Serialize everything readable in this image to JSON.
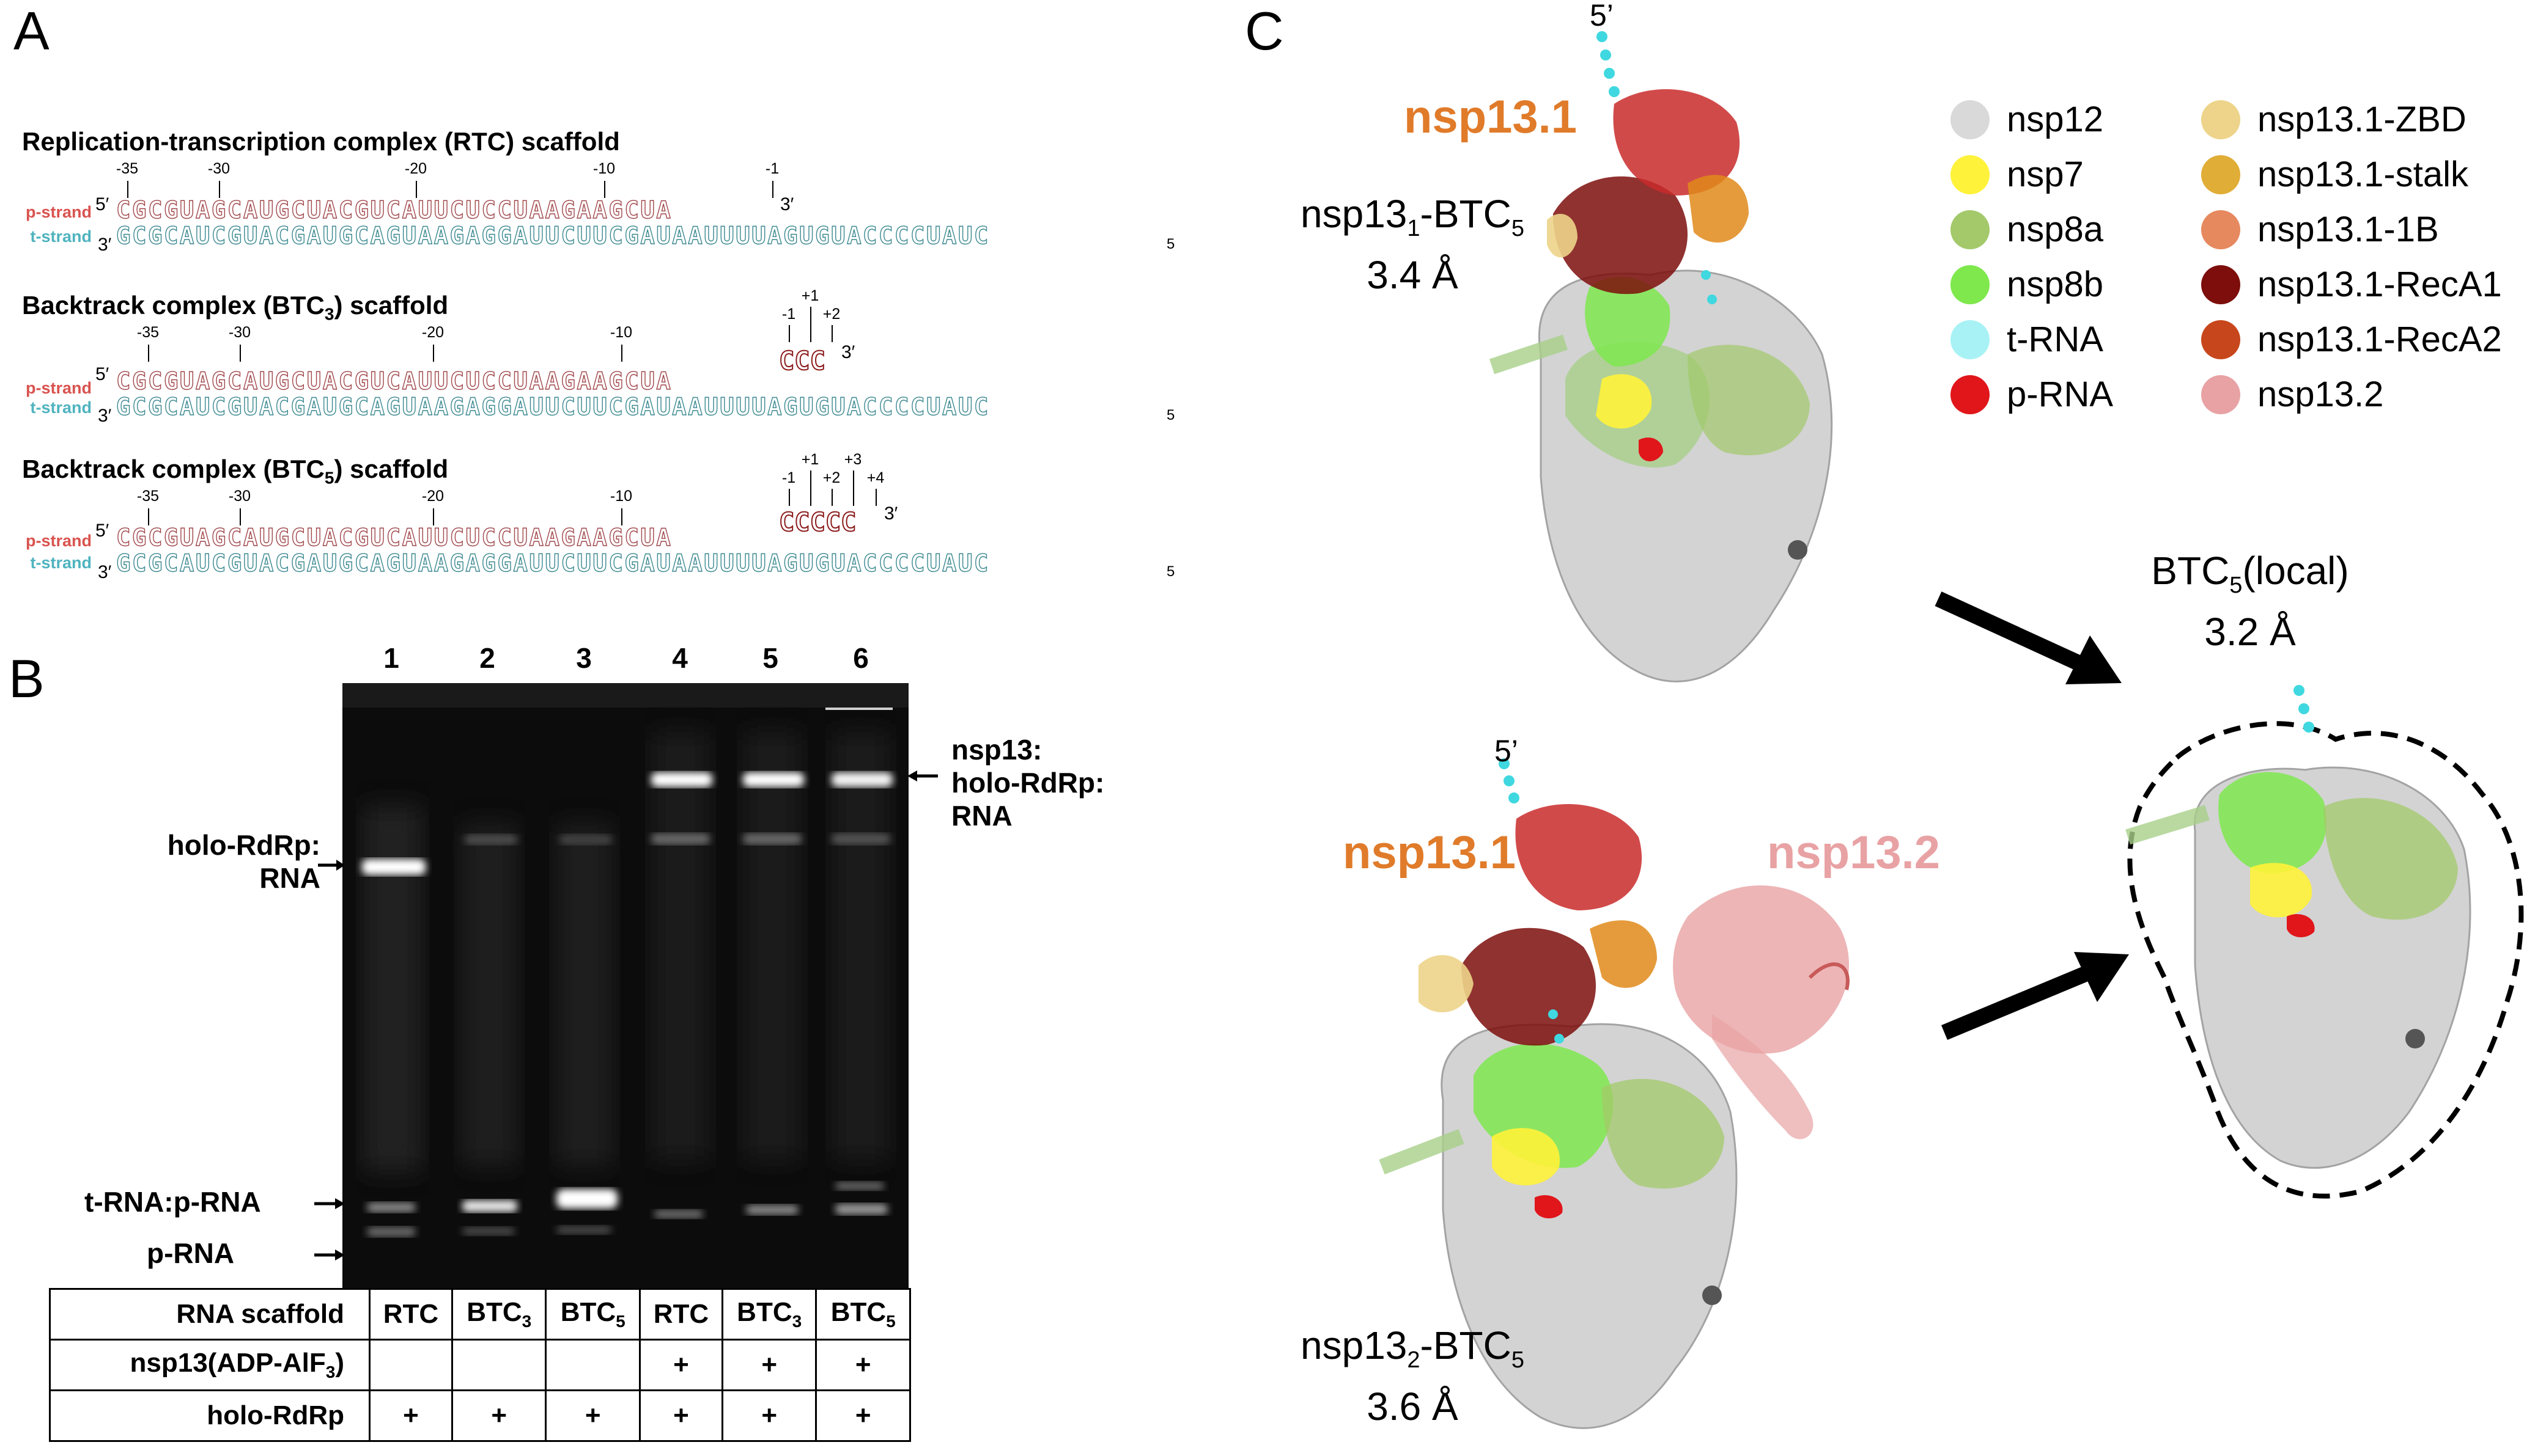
{
  "panels": {
    "a": "A",
    "b": "B",
    "c": "C"
  },
  "scaffolds": [
    {
      "title": "Replication-transcription complex (RTC) scaffold",
      "ext": "",
      "ext_nums": []
    },
    {
      "title": "Backtrack complex (BTC",
      "sub": "3",
      "title_end": ") scaffold",
      "ext": "CCC",
      "ext_nums": [
        "-1",
        "+1",
        "+2"
      ]
    },
    {
      "title": "Backtrack complex (BTC",
      "sub": "5",
      "title_end": ") scaffold",
      "ext": "CCCCC",
      "ext_nums": [
        "-1",
        "+1",
        "+2",
        "+3",
        "+4"
      ]
    }
  ],
  "positions": [
    "-35",
    "-30",
    "-20",
    "-10",
    "-1"
  ],
  "strands": {
    "p_label": "p-strand",
    "t_label": "t-strand",
    "p_seq": "CGCGUAGCAUGCUACGUCAUUCUCCUAAGAAGCUA",
    "t_seq": "GCGCAUCGUACGAUGCAGUAAGAGGAUUCUUCGAUAAUUUUAGUGUACCCCUAUC",
    "p5": "5′",
    "p3": "3′",
    "t3": "3′",
    "t5": "5"
  },
  "gel": {
    "lanes": [
      "1",
      "2",
      "3",
      "4",
      "5",
      "6"
    ],
    "labels": {
      "nsp13_line1": "nsp13:",
      "nsp13_line2": "holo-RdRp:",
      "nsp13_line3": "RNA",
      "holo_line1": "holo-RdRp:",
      "holo_line2": "RNA",
      "trna": "t-RNA:p-RNA",
      "prna": "p-RNA"
    },
    "table": {
      "row1_label": "RNA scaffold",
      "row1": [
        {
          "t": "RTC"
        },
        {
          "t": "BTC",
          "s": "3"
        },
        {
          "t": "BTC",
          "s": "5"
        },
        {
          "t": "RTC"
        },
        {
          "t": "BTC",
          "s": "3"
        },
        {
          "t": "BTC",
          "s": "5"
        }
      ],
      "row2_label": "nsp13(ADP-AlF",
      "row2_sub": "3",
      "row2_end": ")",
      "row2": [
        "",
        "",
        "",
        "+",
        "+",
        "+"
      ],
      "row3_label": "holo-RdRp",
      "row3": [
        "+",
        "+",
        "+",
        "+",
        "+",
        "+"
      ]
    }
  },
  "structures": {
    "top_title": "nsp13.1",
    "top_cap_a": "nsp13",
    "top_cap_sub1": "1",
    "top_cap_b": "-BTC",
    "top_cap_sub2": "5",
    "top_res": "3.4 Å",
    "five_prime": "5’",
    "bottom_title1": "nsp13.1",
    "bottom_title2": "nsp13.2",
    "bottom_cap_a": "nsp13",
    "bottom_cap_sub1": "2",
    "bottom_cap_b": "-BTC",
    "bottom_cap_sub2": "5",
    "bottom_res": "3.6 Å",
    "local_a": "BTC",
    "local_sub": "5",
    "local_b": "(local)",
    "local_res": "3.2 Å"
  },
  "legend": [
    {
      "label": "nsp12",
      "color": "#d9d9d9"
    },
    {
      "label": "nsp7",
      "color": "#fff23a"
    },
    {
      "label": "nsp8a",
      "color": "#a3c96b"
    },
    {
      "label": "nsp8b",
      "color": "#7ee84d"
    },
    {
      "label": "t-RNA",
      "color": "#a8f2f5"
    },
    {
      "label": "p-RNA",
      "color": "#e0161b"
    },
    {
      "label": "nsp13.1-ZBD",
      "color": "#edd48a"
    },
    {
      "label": "nsp13.1-stalk",
      "color": "#e0ad36"
    },
    {
      "label": "nsp13.1-1B",
      "color": "#e6895f"
    },
    {
      "label": "nsp13.1-RecA1",
      "color": "#7d0e0c"
    },
    {
      "label": "nsp13.1-RecA2",
      "color": "#c8461c"
    },
    {
      "label": "nsp13.2",
      "color": "#e8a2a4"
    }
  ]
}
